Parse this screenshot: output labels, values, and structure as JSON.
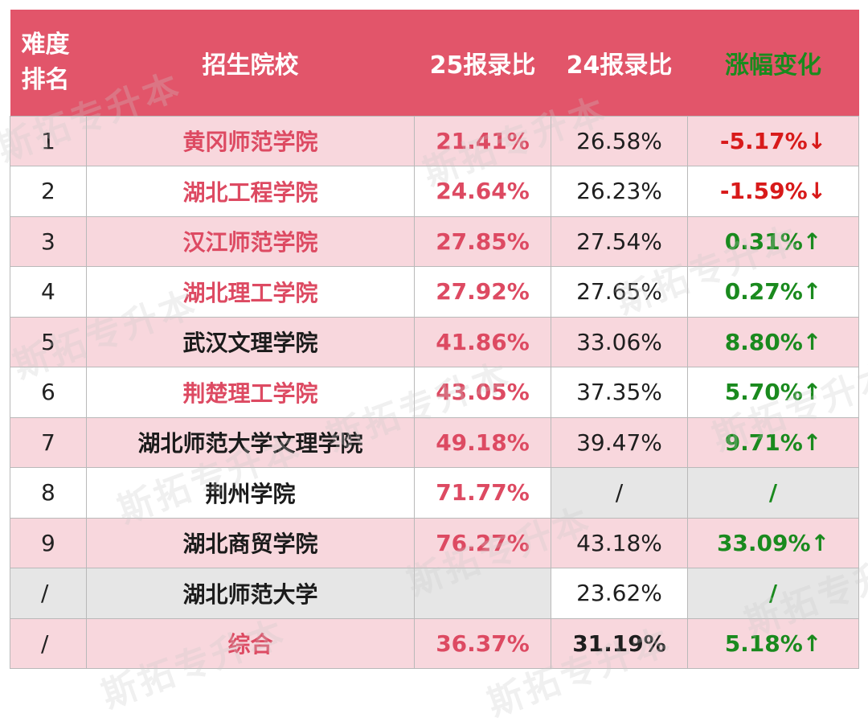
{
  "header": {
    "rank_label_1": "难度",
    "rank_label_2": "排名",
    "school": "招生院校",
    "ratio25": "25报录比",
    "ratio24": "24报录比",
    "change": "涨幅变化"
  },
  "colors": {
    "header_bg": "#e2556a",
    "band_bg": "#f8d7dd",
    "accent_pink": "#dd4a62",
    "increase_green": "#1a8a1e",
    "decrease_red": "#d81a1a",
    "na_gray": "#e6e6e6"
  },
  "rows": [
    {
      "rank": "1",
      "school": "黄冈师范学院",
      "school_color": "pink",
      "r25": "21.41%",
      "r24": "26.58%",
      "change": "-5.17%↓",
      "change_dir": "down",
      "band": true
    },
    {
      "rank": "2",
      "school": "湖北工程学院",
      "school_color": "pink",
      "r25": "24.64%",
      "r24": "26.23%",
      "change": "-1.59%↓",
      "change_dir": "down",
      "band": false
    },
    {
      "rank": "3",
      "school": "汉江师范学院",
      "school_color": "pink",
      "r25": "27.85%",
      "r24": "27.54%",
      "change": "0.31%↑",
      "change_dir": "up",
      "band": true
    },
    {
      "rank": "4",
      "school": "湖北理工学院",
      "school_color": "pink",
      "r25": "27.92%",
      "r24": "27.65%",
      "change": "0.27%↑",
      "change_dir": "up",
      "band": false
    },
    {
      "rank": "5",
      "school": "武汉文理学院",
      "school_color": "black",
      "r25": "41.86%",
      "r24": "33.06%",
      "change": "8.80%↑",
      "change_dir": "up",
      "band": true
    },
    {
      "rank": "6",
      "school": "荆楚理工学院",
      "school_color": "pink",
      "r25": "43.05%",
      "r24": "37.35%",
      "change": "5.70%↑",
      "change_dir": "up",
      "band": false
    },
    {
      "rank": "7",
      "school": "湖北师范大学文理学院",
      "school_color": "black",
      "r25": "49.18%",
      "r24": "39.47%",
      "change": "9.71%↑",
      "change_dir": "up",
      "band": true
    },
    {
      "rank": "8",
      "school": "荆州学院",
      "school_color": "black",
      "r25": "71.77%",
      "r24": "/",
      "change": "/",
      "change_dir": "na",
      "band": false
    },
    {
      "rank": "9",
      "school": "湖北商贸学院",
      "school_color": "black",
      "r25": "76.27%",
      "r24": "43.18%",
      "change": "33.09%↑",
      "change_dir": "up",
      "band": true
    },
    {
      "rank": "/",
      "school": "湖北师范大学",
      "school_color": "black",
      "r25": "",
      "r24": "23.62%",
      "change": "/",
      "change_dir": "na",
      "band": false,
      "gray_row": true
    },
    {
      "rank": "/",
      "school": "综合",
      "school_color": "pink",
      "r25": "36.37%",
      "r24": "31.19%",
      "change": "5.18%↑",
      "change_dir": "up",
      "band": true,
      "summary": true
    }
  ],
  "watermark": "斯拓专升本"
}
